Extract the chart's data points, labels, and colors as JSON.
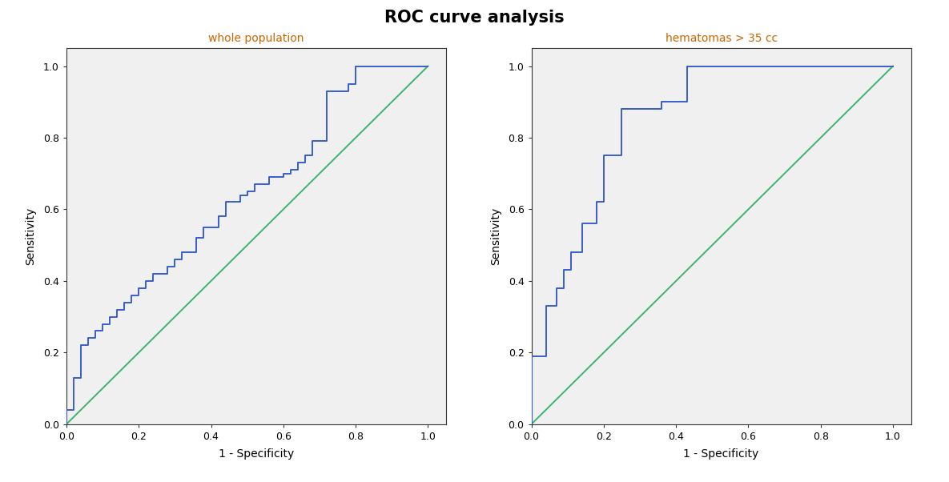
{
  "title": "ROC curve analysis",
  "title_color": "#000000",
  "title_fontsize": 15,
  "title_fontweight": "bold",
  "left_subtitle": "whole population",
  "right_subtitle": "hematomas > 35 cc",
  "subtitle_color": "#cc6600",
  "subtitle_fontsize": 10,
  "xlabel": "1 - Specificity",
  "ylabel": "Sensitivity",
  "axis_label_fontsize": 10,
  "figure_bg_color": "#ffffff",
  "plot_bg_color": "#f0f0f0",
  "roc_color": "#3a5fcd",
  "diagonal_color": "#3cb371",
  "line_width": 1.4,
  "left_roc_x": [
    0.0,
    0.0,
    0.02,
    0.02,
    0.04,
    0.04,
    0.06,
    0.06,
    0.08,
    0.08,
    0.1,
    0.1,
    0.12,
    0.12,
    0.14,
    0.14,
    0.16,
    0.16,
    0.18,
    0.18,
    0.2,
    0.2,
    0.22,
    0.22,
    0.24,
    0.24,
    0.28,
    0.28,
    0.3,
    0.3,
    0.32,
    0.32,
    0.36,
    0.36,
    0.38,
    0.38,
    0.42,
    0.42,
    0.44,
    0.44,
    0.48,
    0.48,
    0.5,
    0.5,
    0.52,
    0.52,
    0.56,
    0.56,
    0.6,
    0.6,
    0.62,
    0.62,
    0.64,
    0.64,
    0.66,
    0.66,
    0.68,
    0.68,
    0.72,
    0.72,
    0.78,
    0.78,
    0.8,
    0.8,
    0.82,
    0.82,
    1.0
  ],
  "left_roc_y": [
    0.0,
    0.04,
    0.04,
    0.13,
    0.13,
    0.22,
    0.22,
    0.24,
    0.24,
    0.26,
    0.26,
    0.28,
    0.28,
    0.3,
    0.3,
    0.32,
    0.32,
    0.34,
    0.34,
    0.36,
    0.36,
    0.38,
    0.38,
    0.4,
    0.4,
    0.42,
    0.42,
    0.44,
    0.44,
    0.46,
    0.46,
    0.48,
    0.48,
    0.52,
    0.52,
    0.55,
    0.55,
    0.58,
    0.58,
    0.62,
    0.62,
    0.64,
    0.64,
    0.65,
    0.65,
    0.67,
    0.67,
    0.69,
    0.69,
    0.7,
    0.7,
    0.71,
    0.71,
    0.73,
    0.73,
    0.75,
    0.75,
    0.79,
    0.79,
    0.93,
    0.93,
    0.95,
    0.95,
    1.0,
    1.0,
    1.0,
    1.0
  ],
  "right_roc_x": [
    0.0,
    0.0,
    0.0,
    0.04,
    0.04,
    0.07,
    0.07,
    0.09,
    0.09,
    0.11,
    0.11,
    0.14,
    0.14,
    0.18,
    0.18,
    0.2,
    0.2,
    0.25,
    0.25,
    0.36,
    0.36,
    0.43,
    0.43,
    0.75,
    0.75,
    1.0
  ],
  "right_roc_y": [
    0.0,
    0.07,
    0.19,
    0.19,
    0.33,
    0.33,
    0.38,
    0.38,
    0.43,
    0.43,
    0.48,
    0.48,
    0.56,
    0.56,
    0.62,
    0.62,
    0.75,
    0.75,
    0.88,
    0.88,
    0.9,
    0.9,
    1.0,
    1.0,
    1.0,
    1.0
  ],
  "tick_labels": [
    "0.0",
    "0.2",
    "0.4",
    "0.6",
    "0.8",
    "1.0"
  ],
  "tick_values": [
    0.0,
    0.2,
    0.4,
    0.6,
    0.8,
    1.0
  ],
  "xlim": [
    0.0,
    1.05
  ],
  "ylim": [
    0.0,
    1.05
  ]
}
